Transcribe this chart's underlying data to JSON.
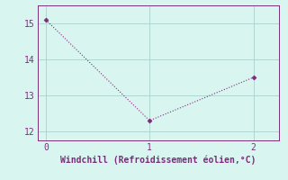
{
  "x": [
    0,
    1,
    2
  ],
  "y": [
    15.1,
    12.3,
    13.5
  ],
  "line_color": "#7B2D7B",
  "marker": "D",
  "marker_size": 2.5,
  "background_color": "#d8f5f0",
  "grid_color": "#b0d8d0",
  "tick_color": "#7B2D7B",
  "xlabel": "Windchill (Refroidissement éolien,°C)",
  "xlabel_color": "#7B2D7B",
  "xlabel_fontsize": 7,
  "xticks": [
    0,
    1,
    2
  ],
  "yticks": [
    12,
    13,
    14,
    15
  ],
  "xlim": [
    -0.08,
    2.25
  ],
  "ylim": [
    11.75,
    15.5
  ],
  "tick_fontsize": 7,
  "figsize": [
    3.2,
    2.0
  ],
  "dpi": 100
}
